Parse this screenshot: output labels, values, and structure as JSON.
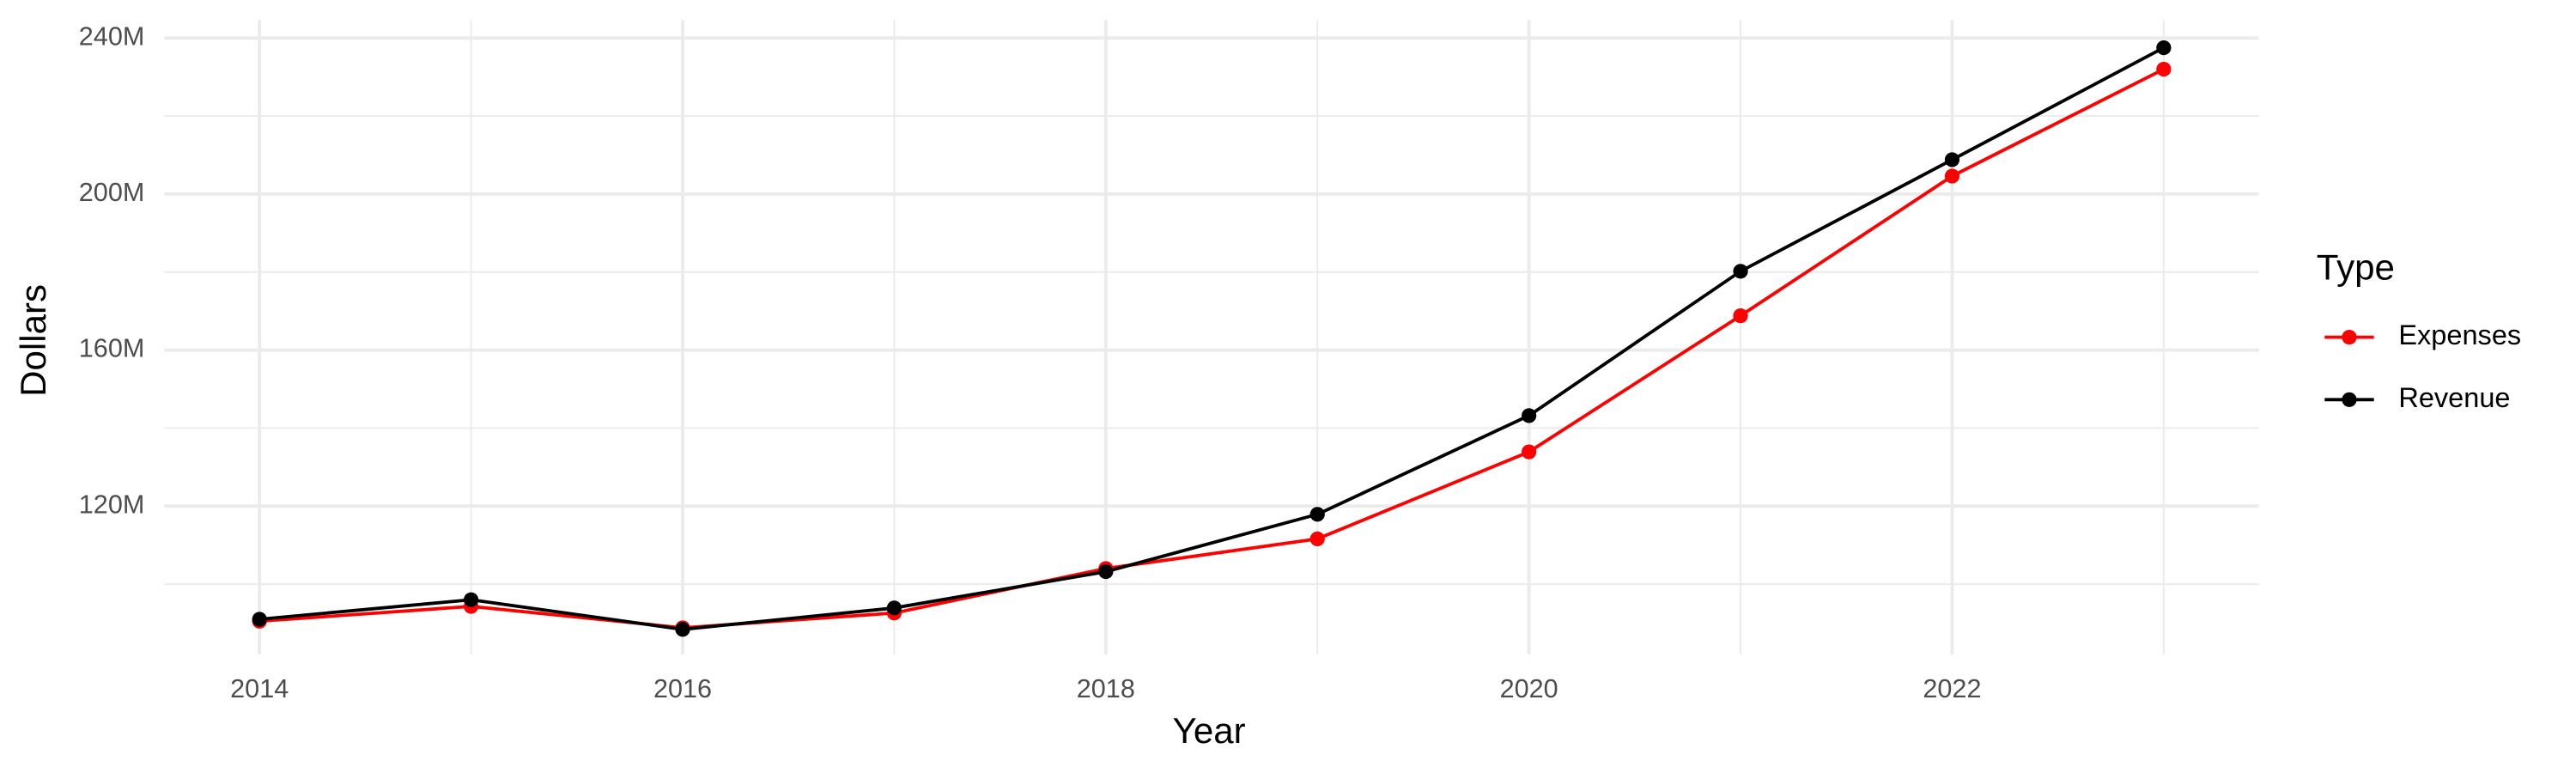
{
  "chart_data": {
    "type": "line",
    "x_label": "Year",
    "y_label": "Dollars",
    "legend_title": "Type",
    "x": [
      2014,
      2015,
      2016,
      2017,
      2018,
      2019,
      2020,
      2021,
      2022,
      2023
    ],
    "series": [
      {
        "name": "Expenses",
        "color": "#ff0000",
        "values": [
          90500000,
          94300000,
          88800000,
          92600000,
          104000000,
          111600000,
          133900000,
          168800000,
          204600000,
          232000000
        ]
      },
      {
        "name": "Revenue",
        "color": "#000000",
        "values": [
          91000000,
          96000000,
          88400000,
          93900000,
          103200000,
          117900000,
          143200000,
          180200000,
          208800000,
          237500000
        ]
      }
    ],
    "xlim": [
      2013.55,
      2023.45
    ],
    "ylim": [
      82000000,
      244600000
    ],
    "xticks": [
      2014,
      2016,
      2018,
      2020,
      2022
    ],
    "x_minor_ticks": [
      2015,
      2017,
      2019,
      2021,
      2023
    ],
    "yticks": [
      {
        "value": 120000000,
        "label": "120M"
      },
      {
        "value": 160000000,
        "label": "160M"
      },
      {
        "value": 200000000,
        "label": "200M"
      },
      {
        "value": 240000000,
        "label": "240M"
      }
    ],
    "y_minor_ticks": [
      100000000,
      140000000,
      180000000,
      220000000
    ],
    "grid": true,
    "legend_position": "right"
  }
}
